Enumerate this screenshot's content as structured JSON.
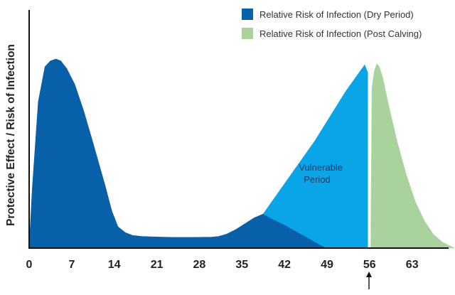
{
  "chart_data": {
    "type": "area",
    "ylabel": "Protective Effect / Risk of Infection",
    "xlabel": "",
    "xlim": [
      0,
      70
    ],
    "ylim": [
      0,
      1
    ],
    "grid": false,
    "legend_position": "top-right",
    "x_ticks": [
      "0",
      "7",
      "14",
      "21",
      "28",
      "35",
      "42",
      "49",
      "56",
      "63"
    ],
    "x_tick_values": [
      0,
      7,
      14,
      21,
      28,
      35,
      42,
      49,
      56,
      63
    ],
    "marker_arrow_at": 56,
    "annotation": {
      "lines": [
        "Vulnerable",
        "Period"
      ],
      "x": 45.5,
      "y": 0.33
    },
    "series": [
      {
        "name": "Relative Risk of Infection (Dry Period)",
        "color": "#0860a8",
        "x": [
          0,
          0.5,
          1.5,
          2.6,
          3.5,
          4.4,
          5.2,
          6.2,
          7.5,
          9,
          10.5,
          12.5,
          13.6,
          14.6,
          15.8,
          17,
          18.5,
          20,
          22,
          24,
          27,
          30,
          31.2,
          32.5,
          34,
          35.5,
          37,
          38.5,
          40,
          42,
          44,
          46,
          48,
          49
        ],
        "y": [
          0,
          0.3,
          0.75,
          0.93,
          0.96,
          0.97,
          0.96,
          0.92,
          0.84,
          0.7,
          0.54,
          0.32,
          0.19,
          0.11,
          0.08,
          0.065,
          0.06,
          0.058,
          0.056,
          0.055,
          0.055,
          0.056,
          0.06,
          0.072,
          0.095,
          0.125,
          0.155,
          0.175,
          0.15,
          0.12,
          0.085,
          0.05,
          0.015,
          0
        ]
      },
      {
        "name": "Vulnerable Period",
        "color": "#0aa5e6",
        "x": [
          38.5,
          47,
          52,
          55.2,
          55.7,
          55.7,
          49,
          48,
          46,
          44,
          42,
          40,
          38.5
        ],
        "y": [
          0.175,
          0.55,
          0.8,
          0.94,
          0.9,
          0,
          0,
          0.015,
          0.05,
          0.085,
          0.12,
          0.15,
          0.175
        ]
      },
      {
        "name": "Relative Risk of Infection (Post Calving)",
        "color": "#a9d29c",
        "x": [
          56.2,
          56.4,
          56.8,
          57.2,
          57.6,
          58.2,
          59,
          60.5,
          62,
          63.5,
          65,
          66.5,
          68,
          69.3,
          70
        ],
        "y": [
          0,
          0.82,
          0.91,
          0.945,
          0.93,
          0.87,
          0.75,
          0.55,
          0.38,
          0.24,
          0.14,
          0.07,
          0.03,
          0.01,
          0
        ]
      }
    ]
  }
}
